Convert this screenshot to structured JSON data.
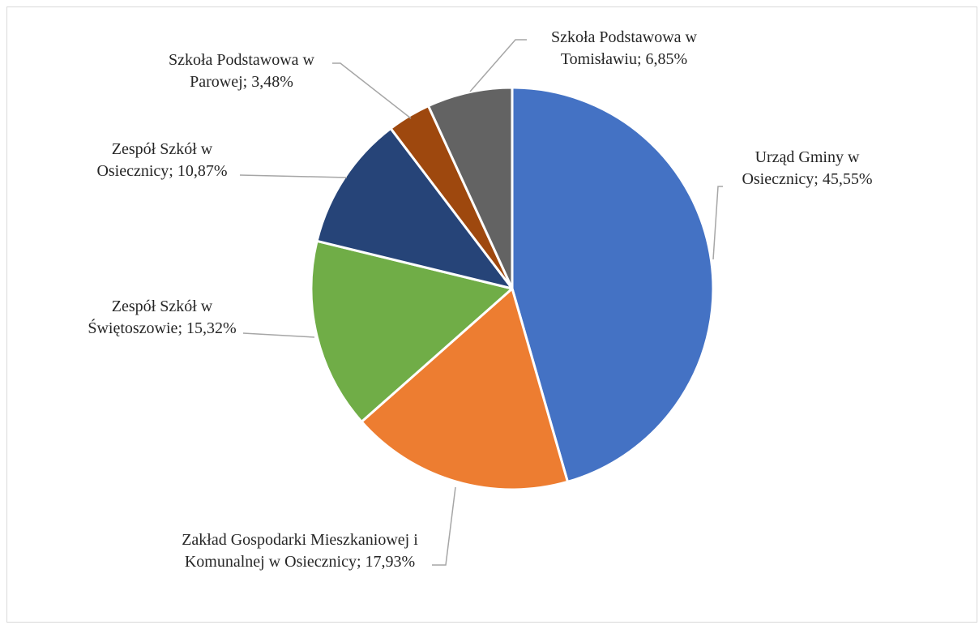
{
  "chart_data": {
    "type": "pie",
    "title": "",
    "slices": [
      {
        "label_lines": [
          "Urząd Gminy w",
          "Osiecznicy; 45,55%"
        ],
        "value": 45.55,
        "color": "#4472C4"
      },
      {
        "label_lines": [
          "Zakład Gospodarki Mieszkaniowej i",
          "Komunalnej w Osiecznicy; 17,93%"
        ],
        "value": 17.93,
        "color": "#ED7D31"
      },
      {
        "label_lines": [
          "Zespół Szkół w",
          "Świętoszowie; 15,32%"
        ],
        "value": 15.32,
        "color": "#70AD47"
      },
      {
        "label_lines": [
          "Zespół Szkół w",
          "Osiecznicy; 10,87%"
        ],
        "value": 10.87,
        "color": "#264478"
      },
      {
        "label_lines": [
          "Szkoła Podstawowa w",
          "Parowej; 3,48%"
        ],
        "value": 3.48,
        "color": "#9E480E"
      },
      {
        "label_lines": [
          "Szkoła Podstawowa w",
          "Tomisławiu; 6,85%"
        ],
        "value": 6.85,
        "color": "#636363"
      }
    ],
    "start_angle": "12 o'clock",
    "direction": "clockwise",
    "legend": "none",
    "data_labels": "category and percentage with leader lines"
  }
}
